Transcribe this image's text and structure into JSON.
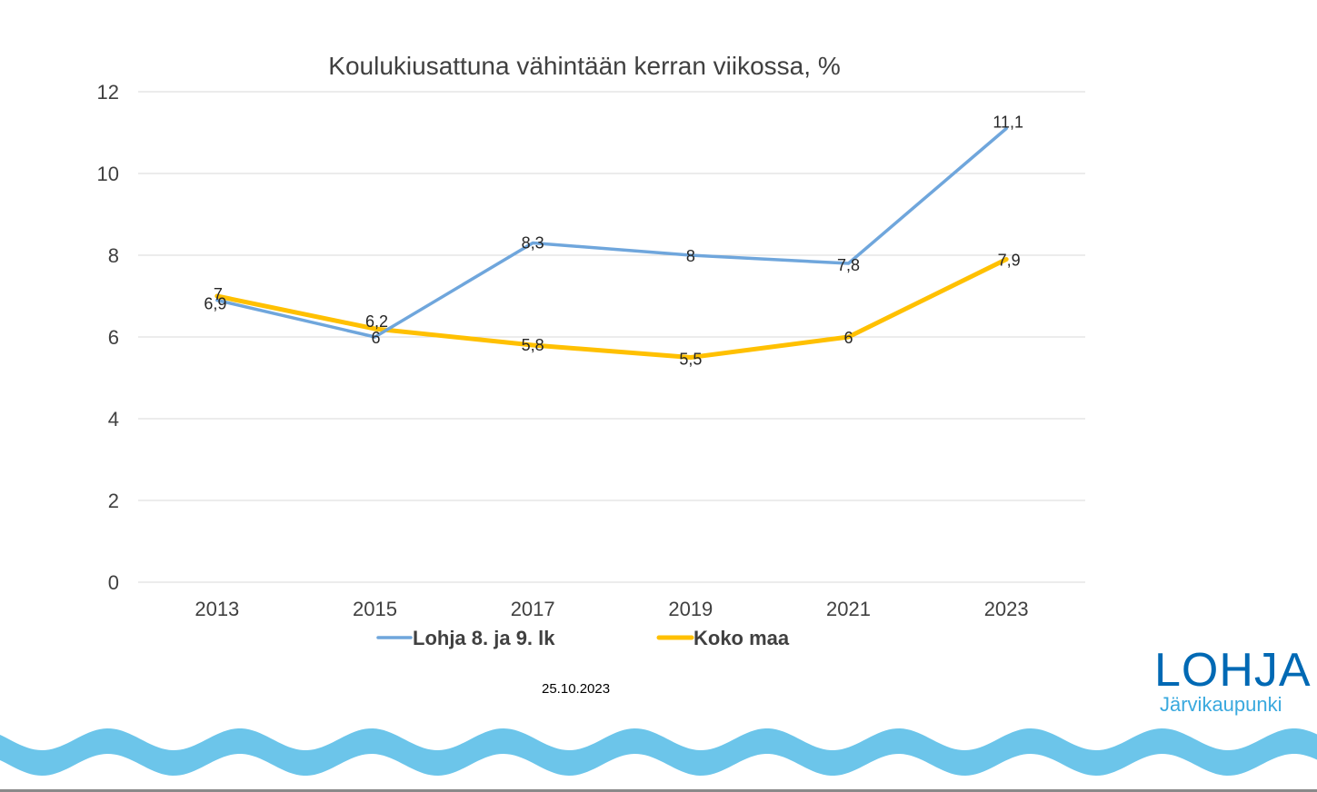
{
  "chart_data": {
    "type": "line",
    "title": "Koulukiusattuna vähintään kerran viikossa, %",
    "categories": [
      "2013",
      "2015",
      "2017",
      "2019",
      "2021",
      "2023"
    ],
    "ylim": [
      0,
      12
    ],
    "yticks": [
      0,
      2,
      4,
      6,
      8,
      10,
      12
    ],
    "ytick_labels": [
      "0",
      "2",
      "4",
      "6",
      "8",
      "10",
      "12"
    ],
    "grid": true,
    "legend_position": "bottom",
    "xlabel": "",
    "ylabel": "",
    "series": [
      {
        "name": "Lohja 8. ja 9. lk",
        "color": "#6fa6dc",
        "values": [
          6.9,
          6,
          8.3,
          8,
          7.8,
          11.1
        ],
        "labels": [
          "6,9",
          "6",
          "8,3",
          "8",
          "7,8",
          "11,1"
        ]
      },
      {
        "name": "Koko maa",
        "color": "#ffc000",
        "values": [
          7,
          6.2,
          5.8,
          5.5,
          6,
          7.9
        ],
        "labels": [
          "7",
          "6,2",
          "5,8",
          "5,5",
          "6",
          "7,9"
        ]
      }
    ]
  },
  "footer": {
    "date": "25.10.2023"
  },
  "logo": {
    "name": "LOHJA",
    "tagline": "Järvikaupunki",
    "color": "#0069b4",
    "wave_color": "#6cc5ea"
  }
}
